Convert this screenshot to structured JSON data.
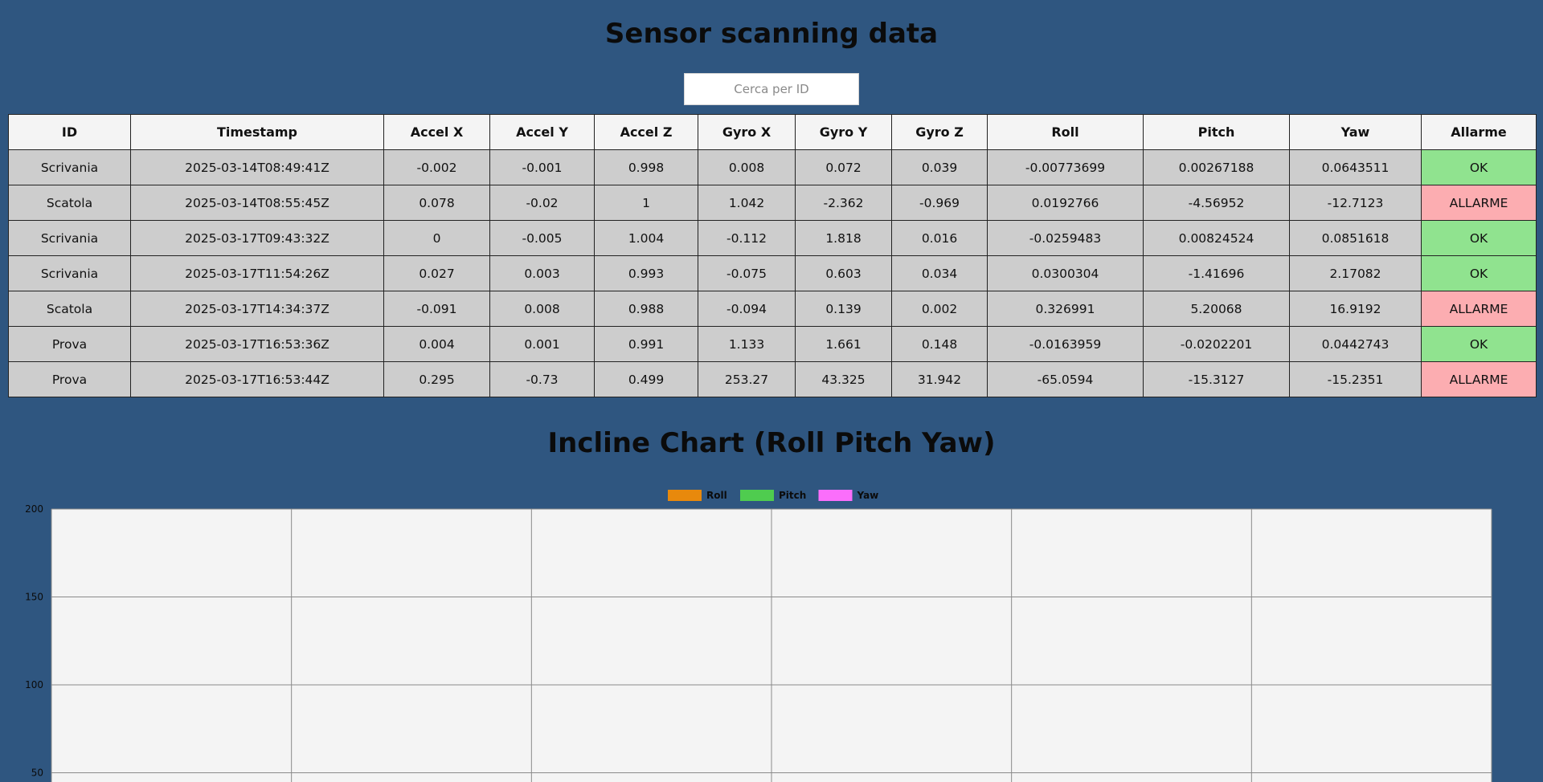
{
  "header": {
    "title": "Sensor scanning data"
  },
  "search": {
    "placeholder": "Cerca per ID",
    "value": ""
  },
  "table": {
    "columns": [
      "ID",
      "Timestamp",
      "Accel X",
      "Accel Y",
      "Accel Z",
      "Gyro X",
      "Gyro Y",
      "Gyro Z",
      "Roll",
      "Pitch",
      "Yaw",
      "Allarme"
    ],
    "rows": [
      [
        "Scrivania",
        "2025-03-14T08:49:41Z",
        "-0.002",
        "-0.001",
        "0.998",
        "0.008",
        "0.072",
        "0.039",
        "-0.00773699",
        "0.00267188",
        "0.0643511",
        "OK"
      ],
      [
        "Scatola",
        "2025-03-14T08:55:45Z",
        "0.078",
        "-0.02",
        "1",
        "1.042",
        "-2.362",
        "-0.969",
        "0.0192766",
        "-4.56952",
        "-12.7123",
        "ALLARME"
      ],
      [
        "Scrivania",
        "2025-03-17T09:43:32Z",
        "0",
        "-0.005",
        "1.004",
        "-0.112",
        "1.818",
        "0.016",
        "-0.0259483",
        "0.00824524",
        "0.0851618",
        "OK"
      ],
      [
        "Scrivania",
        "2025-03-17T11:54:26Z",
        "0.027",
        "0.003",
        "0.993",
        "-0.075",
        "0.603",
        "0.034",
        "0.0300304",
        "-1.41696",
        "2.17082",
        "OK"
      ],
      [
        "Scatola",
        "2025-03-17T14:34:37Z",
        "-0.091",
        "0.008",
        "0.988",
        "-0.094",
        "0.139",
        "0.002",
        "0.326991",
        "5.20068",
        "16.9192",
        "ALLARME"
      ],
      [
        "Prova",
        "2025-03-17T16:53:36Z",
        "0.004",
        "0.001",
        "0.991",
        "1.133",
        "1.661",
        "0.148",
        "-0.0163959",
        "-0.0202201",
        "0.0442743",
        "OK"
      ],
      [
        "Prova",
        "2025-03-17T16:53:44Z",
        "0.295",
        "-0.73",
        "0.499",
        "253.27",
        "43.325",
        "31.942",
        "-65.0594",
        "-15.3127",
        "-15.2351",
        "ALLARME"
      ]
    ]
  },
  "colors": {
    "background": "#2f5680",
    "ok": "#90e38f",
    "alarm": "#fcadb1",
    "roll": "#e8890c",
    "pitch": "#4fcc4f",
    "yaw": "#fb6efb"
  },
  "chart_title": "Incline Chart (Roll Pitch Yaw)",
  "chart_data": {
    "type": "line",
    "title": "Incline Chart (Roll Pitch Yaw)",
    "series": [
      {
        "name": "Roll",
        "color": "#e8890c",
        "values": []
      },
      {
        "name": "Pitch",
        "color": "#4fcc4f",
        "values": []
      },
      {
        "name": "Yaw",
        "color": "#fb6efb",
        "values": []
      }
    ],
    "y_ticks": [
      "200",
      "150",
      "100",
      "50"
    ],
    "ylim": [
      50,
      200
    ],
    "x_gridlines": 6,
    "grid": true,
    "legend_position": "top-center"
  }
}
